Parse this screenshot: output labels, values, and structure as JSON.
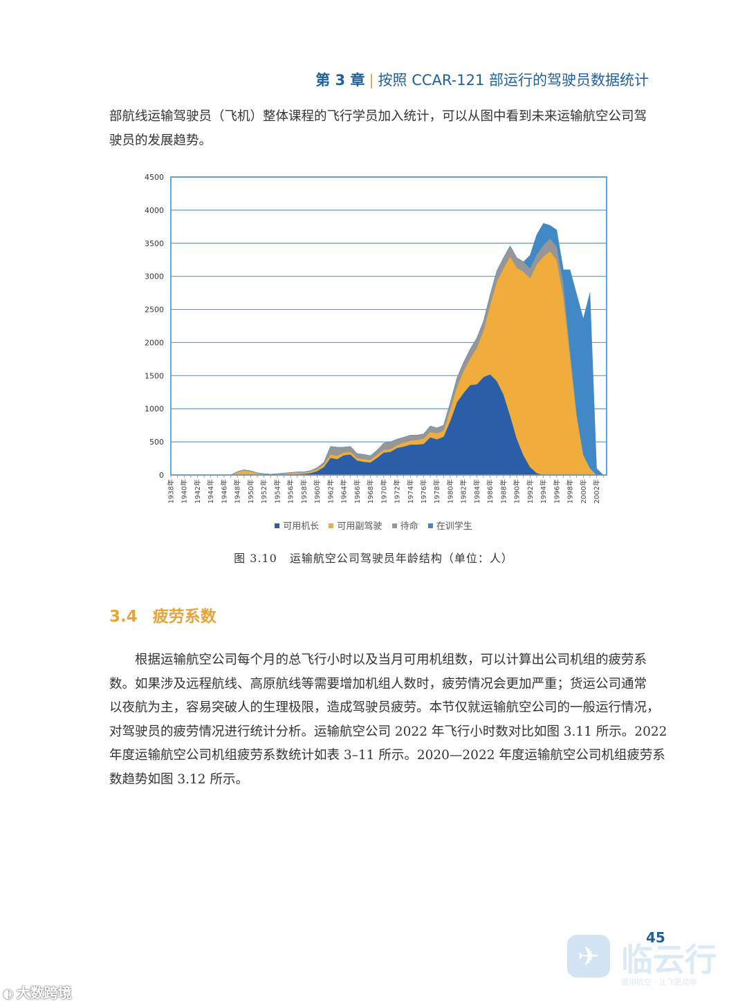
{
  "header": {
    "chapter": "第 3 章",
    "separator": "|",
    "title": "按照 CCAR-121 部运行的驾驶员数据统计"
  },
  "intro_lines": [
    "部航线运输驾驶员（飞机）整体课程的飞行学员加入统计，可以从图中看到未来运输航空公司驾",
    "驶员的发展趋势。"
  ],
  "figure": {
    "number": "图 3.10",
    "title": "运输航空公司驾驶员年龄结构（单位：人）"
  },
  "section": {
    "number": "3.4",
    "title": "疲劳系数"
  },
  "body_lines": [
    "　　根据运输航空公司每个月的总飞行小时以及当月可用机组数，可以计算出公司机组的疲劳系",
    "数。如果涉及远程航线、高原航线等需要增加机组人数时，疲劳情况会更加严重；货运公司通常",
    "以夜航为主，容易突破人的生理极限，造成驾驶员疲劳。本节仅就运输航空公司的一般运行情况，",
    "对驾驶员的疲劳情况进行统计分析。运输航空公司 2022 年飞行小时数对比如图 3.11 所示。2022",
    "年度运输航空公司机组疲劳系数统计如表 3–11 所示。2020—2022 年度运输航空公司机组疲劳系",
    "数趋势如图 3.12 所示。"
  ],
  "page_number": "45",
  "watermarks": {
    "left": "大数跨境",
    "right_big": "临云行",
    "right_small": "通用航空 · 让飞更简单",
    "plane_icon": "✈"
  },
  "chart_data": {
    "type": "area",
    "stacked": true,
    "x": [
      1938,
      1939,
      1940,
      1941,
      1942,
      1943,
      1944,
      1945,
      1946,
      1947,
      1948,
      1949,
      1950,
      1951,
      1952,
      1953,
      1954,
      1955,
      1956,
      1957,
      1958,
      1959,
      1960,
      1961,
      1962,
      1963,
      1964,
      1965,
      1966,
      1967,
      1968,
      1969,
      1970,
      1971,
      1972,
      1973,
      1974,
      1975,
      1976,
      1977,
      1978,
      1979,
      1980,
      1981,
      1982,
      1983,
      1984,
      1985,
      1986,
      1987,
      1988,
      1989,
      1990,
      1991,
      1992,
      1993,
      1994,
      1995,
      1996,
      1997,
      1998,
      1999,
      2000,
      2001,
      2002,
      2003
    ],
    "x_tick_labels": [
      "1938年",
      "1940年",
      "1942年",
      "1944年",
      "1946年",
      "1948年",
      "1950年",
      "1952年",
      "1954年",
      "1956年",
      "1958年",
      "1960年",
      "1962年",
      "1964年",
      "1966年",
      "1968年",
      "1970年",
      "1972年",
      "1974年",
      "1976年",
      "1978年",
      "1980年",
      "1982年",
      "1984年",
      "1986年",
      "1988年",
      "1990年",
      "1992年",
      "1994年",
      "1996年",
      "1998年",
      "2000年",
      "2002年"
    ],
    "ylim": [
      0,
      4500
    ],
    "y_ticks": [
      0,
      500,
      1000,
      1500,
      2000,
      2500,
      3000,
      3500,
      4000,
      4500
    ],
    "grid": true,
    "legend_position": "bottom",
    "series": [
      {
        "name": "可用机长",
        "color": "#2a5ea8",
        "values": [
          0,
          0,
          0,
          0,
          0,
          0,
          0,
          0,
          0,
          0,
          5,
          10,
          8,
          5,
          3,
          2,
          5,
          10,
          12,
          15,
          18,
          30,
          60,
          120,
          260,
          240,
          300,
          310,
          220,
          200,
          190,
          260,
          340,
          350,
          410,
          430,
          460,
          460,
          470,
          570,
          540,
          580,
          820,
          1100,
          1240,
          1360,
          1370,
          1480,
          1520,
          1420,
          1220,
          900,
          550,
          300,
          120,
          30,
          0,
          0,
          0,
          0,
          0,
          0,
          0,
          0,
          0,
          0
        ]
      },
      {
        "name": "可用副驾驶",
        "color": "#f0ad3c",
        "values": [
          0,
          0,
          0,
          0,
          0,
          0,
          0,
          0,
          0,
          0,
          40,
          60,
          50,
          25,
          15,
          8,
          12,
          15,
          20,
          25,
          20,
          25,
          30,
          40,
          50,
          50,
          40,
          40,
          35,
          40,
          40,
          45,
          40,
          40,
          40,
          60,
          60,
          70,
          80,
          80,
          90,
          90,
          170,
          230,
          330,
          400,
          550,
          700,
          1050,
          1500,
          1900,
          2400,
          2580,
          2770,
          2850,
          3150,
          3300,
          3380,
          3250,
          2700,
          1800,
          900,
          300,
          100,
          0,
          0
        ]
      },
      {
        "name": "待命",
        "color": "#969696",
        "values": [
          0,
          0,
          0,
          0,
          0,
          0,
          0,
          0,
          0,
          0,
          5,
          8,
          5,
          3,
          2,
          2,
          3,
          4,
          5,
          6,
          8,
          10,
          20,
          30,
          120,
          130,
          80,
          80,
          70,
          70,
          60,
          70,
          100,
          110,
          90,
          80,
          80,
          70,
          70,
          90,
          80,
          80,
          100,
          130,
          130,
          140,
          150,
          140,
          150,
          160,
          160,
          160,
          150,
          150,
          150,
          150,
          170,
          190,
          200,
          200,
          100,
          30,
          10,
          5,
          0,
          0
        ]
      },
      {
        "name": "在训学生",
        "color": "#4189c6",
        "values": [
          0,
          0,
          0,
          0,
          0,
          0,
          0,
          0,
          0,
          0,
          0,
          0,
          0,
          0,
          0,
          0,
          0,
          0,
          0,
          0,
          0,
          0,
          0,
          0,
          0,
          0,
          0,
          0,
          0,
          0,
          0,
          0,
          0,
          0,
          0,
          0,
          0,
          0,
          0,
          0,
          0,
          0,
          0,
          0,
          0,
          0,
          0,
          0,
          0,
          0,
          0,
          0,
          0,
          0,
          200,
          300,
          330,
          200,
          250,
          200,
          1200,
          1800,
          2050,
          2650,
          100,
          0
        ]
      }
    ]
  }
}
